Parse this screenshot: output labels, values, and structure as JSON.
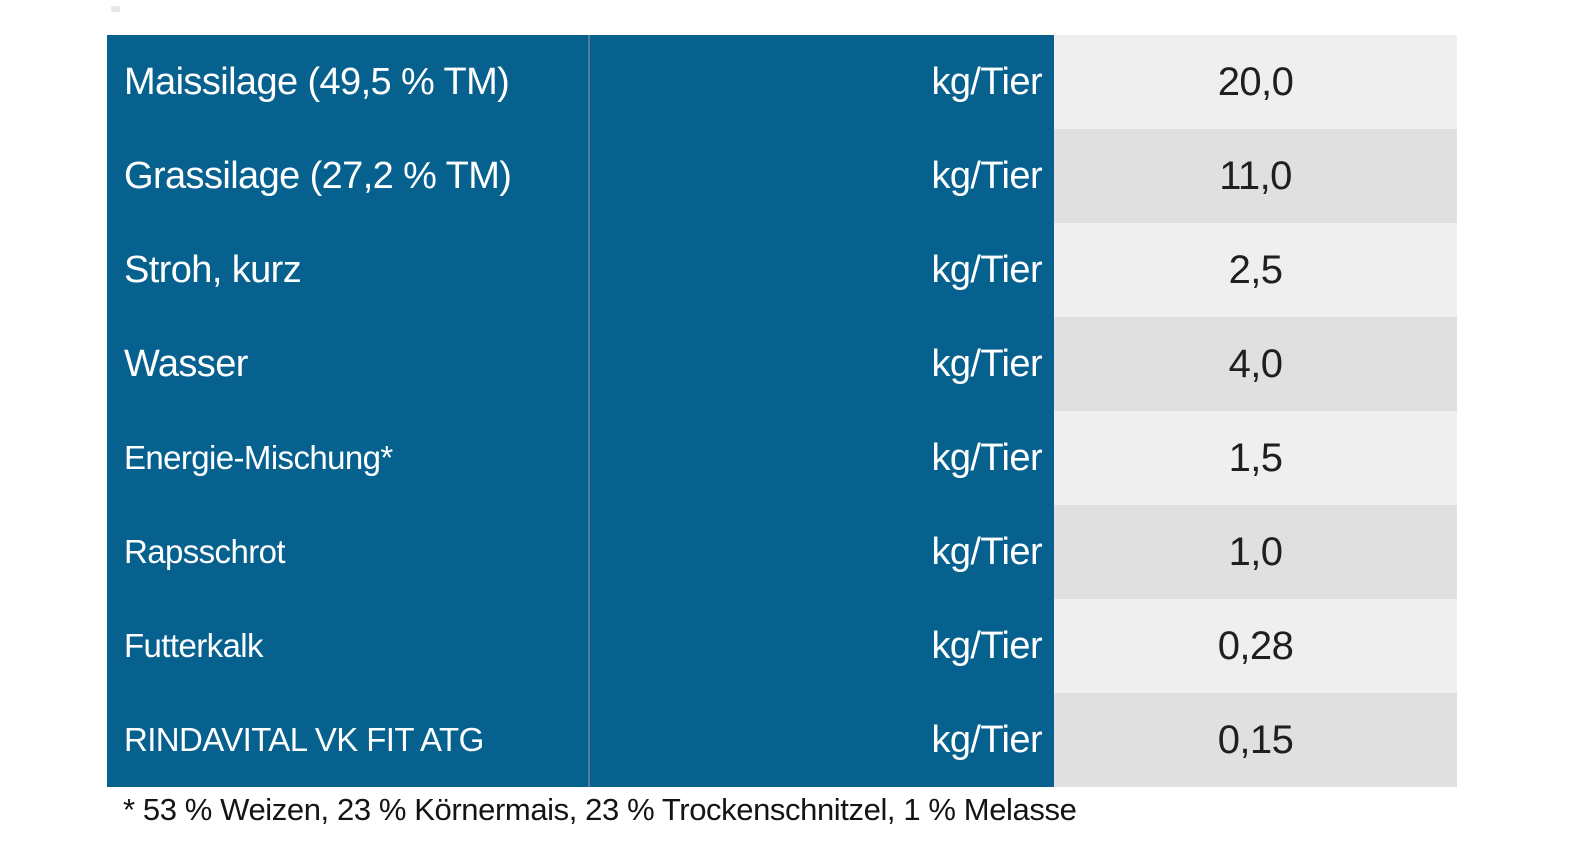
{
  "chart_data": {
    "type": "table",
    "rows": [
      {
        "label": "Maissilage (49,5 % TM)",
        "unit": "kg/Tier",
        "value": "20,0"
      },
      {
        "label": "Grassilage (27,2 % TM)",
        "unit": "kg/Tier",
        "value": "11,0"
      },
      {
        "label": "Stroh, kurz",
        "unit": "kg/Tier",
        "value": "2,5"
      },
      {
        "label": "Wasser",
        "unit": "kg/Tier",
        "value": "4,0"
      },
      {
        "label": "Energie-Mischung*",
        "unit": "kg/Tier",
        "value": "1,5"
      },
      {
        "label": "Rapsschrot",
        "unit": "kg/Tier",
        "value": "1,0"
      },
      {
        "label": "Futterkalk",
        "unit": "kg/Tier",
        "value": "0,28"
      },
      {
        "label": "RINDAVITAL VK FIT ATG",
        "unit": "kg/Tier",
        "value": "0,15"
      }
    ],
    "footnote": "* 53 % Weizen, 23 % Körnermais, 23 % Trockenschnitzel, 1 % Melasse",
    "layout": {
      "label_columns": "blue, left-aligned labels, right-aligned units",
      "value_column": "centered, alternating light/dark gray rows",
      "grid": "off",
      "header_row": "none"
    }
  },
  "colors": {
    "blue": "#07618F",
    "divider": "#4F7DA1",
    "row-light": "#EFEFEF",
    "row-dark": "#E0E0E0"
  }
}
